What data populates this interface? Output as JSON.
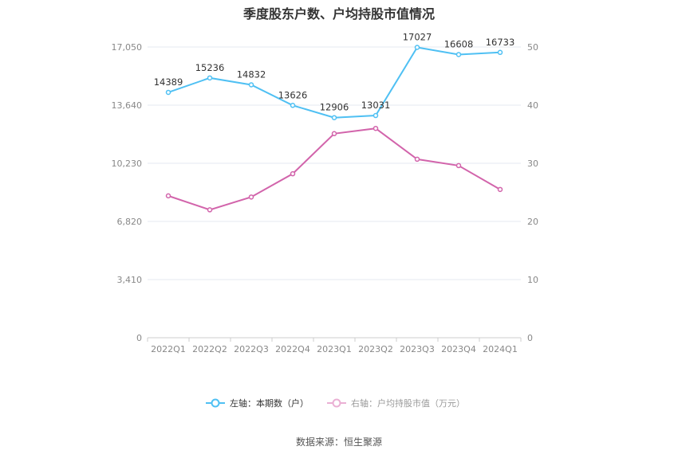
{
  "title": "季度股东户数、户均持股市值情况",
  "source": "数据来源：恒生聚源",
  "chart_data": {
    "type": "line",
    "categories": [
      "2022Q1",
      "2022Q2",
      "2022Q3",
      "2022Q4",
      "2023Q1",
      "2023Q2",
      "2023Q3",
      "2023Q4",
      "2024Q1"
    ],
    "left_axis": {
      "range": [
        0,
        17050
      ],
      "ticks": [
        "0",
        "3,410",
        "6,820",
        "10,230",
        "13,640",
        "17,050"
      ]
    },
    "right_axis": {
      "range": [
        0,
        50
      ],
      "ticks": [
        "0",
        "10",
        "20",
        "30",
        "40",
        "50"
      ]
    },
    "grid": true,
    "legend_position": "bottom",
    "series": [
      {
        "name": "左轴：本期数（户）",
        "axis": "left",
        "color": "#4fc0f3",
        "values": [
          14389,
          15236,
          14832,
          13626,
          12906,
          13031,
          17027,
          16608,
          16733
        ],
        "labels": [
          "14389",
          "15236",
          "14832",
          "13626",
          "12906",
          "13031",
          "17027",
          "16608",
          "16733"
        ]
      },
      {
        "name": "右轴：户均持股市值（万元）",
        "axis": "right",
        "color": "#d264ab",
        "legend_color": "#eab0d4",
        "values": [
          24.4,
          22.0,
          24.2,
          28.2,
          35.1,
          36.0,
          30.7,
          29.6,
          25.5
        ]
      }
    ]
  }
}
